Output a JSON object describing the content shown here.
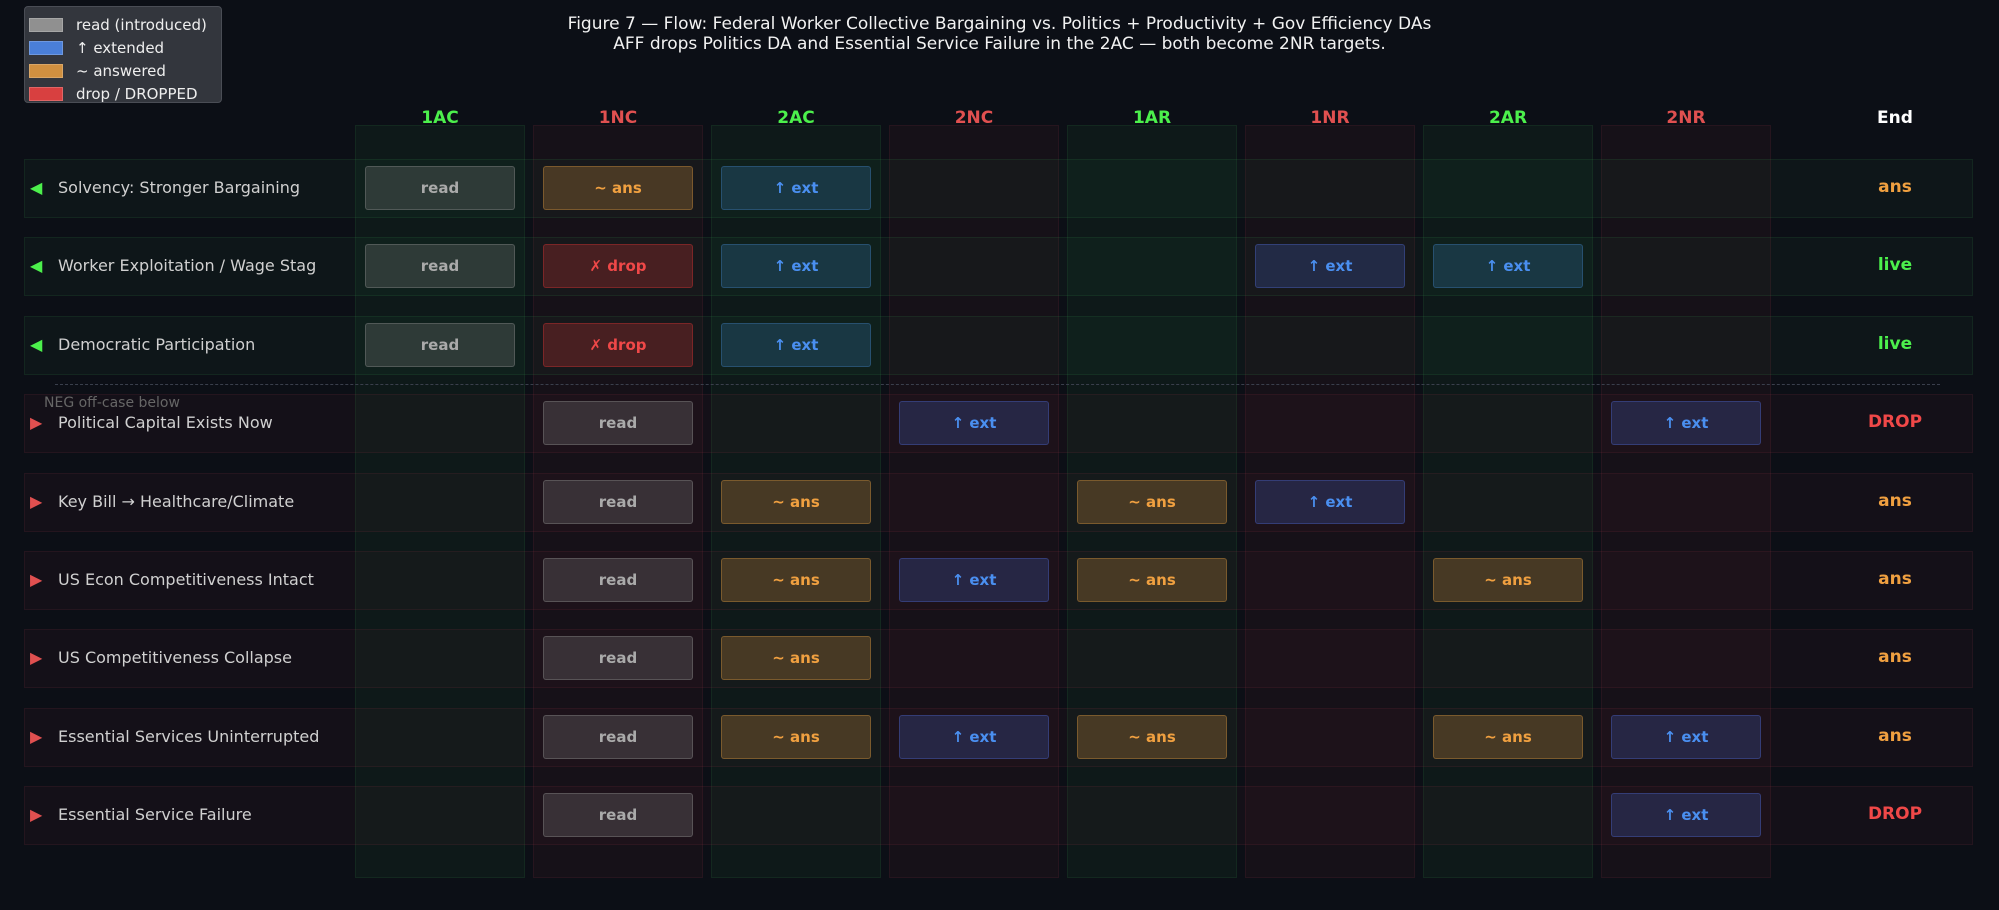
{
  "title": "Figure 7 — Flow: Federal Worker Collective Bargaining vs. Politics + Productivity + Gov Efficiency DAs",
  "subtitle": "AFF drops Politics DA and Essential Service Failure in the 2AC — both become 2NR targets.",
  "columns": [
    {
      "label": "1AC",
      "side": "aff"
    },
    {
      "label": "1NC",
      "side": "neg"
    },
    {
      "label": "2AC",
      "side": "aff"
    },
    {
      "label": "2NC",
      "side": "neg"
    },
    {
      "label": "1AR",
      "side": "aff"
    },
    {
      "label": "1NR",
      "side": "neg"
    },
    {
      "label": "2AR",
      "side": "aff"
    },
    {
      "label": "2NR",
      "side": "neg"
    }
  ],
  "end_label": "End",
  "offcase_label": "NEG off-case below",
  "arrows": {
    "aff": "◀",
    "neg": "▶"
  },
  "cell_labels": {
    "read": "read",
    "ans": "~ ans",
    "ext": "↑ ext",
    "drop": "✗ drop"
  },
  "end_colors": {
    "ans": "#f0a040",
    "live": "#4cf04c",
    "DROP": "#f04848"
  },
  "rows": [
    {
      "label": "Solvency: Stronger Bargaining",
      "side": "aff",
      "cells": [
        "read",
        "ans",
        "ext",
        "",
        "",
        "",
        "",
        ""
      ],
      "end": "ans"
    },
    {
      "label": "Worker Exploitation / Wage Stag",
      "side": "aff",
      "cells": [
        "read",
        "drop",
        "ext",
        "",
        "",
        "ext",
        "ext",
        ""
      ],
      "end": "live"
    },
    {
      "label": "Democratic Participation",
      "side": "aff",
      "cells": [
        "read",
        "drop",
        "ext",
        "",
        "",
        "",
        "",
        ""
      ],
      "end": "live"
    },
    {
      "label": "Political Capital Exists Now",
      "side": "neg",
      "cells": [
        "",
        "read",
        "",
        "ext",
        "",
        "",
        "",
        "ext"
      ],
      "end": "DROP"
    },
    {
      "label": "Key Bill → Healthcare/Climate",
      "side": "neg",
      "cells": [
        "",
        "read",
        "ans",
        "",
        "ans",
        "ext",
        "",
        ""
      ],
      "end": "ans"
    },
    {
      "label": "US Econ Competitiveness Intact",
      "side": "neg",
      "cells": [
        "",
        "read",
        "ans",
        "ext",
        "ans",
        "",
        "ans",
        ""
      ],
      "end": "ans"
    },
    {
      "label": "US Competitiveness Collapse",
      "side": "neg",
      "cells": [
        "",
        "read",
        "ans",
        "",
        "",
        "",
        "",
        ""
      ],
      "end": "ans"
    },
    {
      "label": "Essential Services Uninterrupted",
      "side": "neg",
      "cells": [
        "",
        "read",
        "ans",
        "ext",
        "ans",
        "",
        "ans",
        "ext"
      ],
      "end": "ans"
    },
    {
      "label": "Essential Service Failure",
      "side": "neg",
      "cells": [
        "",
        "read",
        "",
        "",
        "",
        "",
        "",
        "ext"
      ],
      "end": "DROP"
    }
  ],
  "legend": [
    {
      "label": "read (introduced)",
      "color": "#909090"
    },
    {
      "label": "↑ extended",
      "color": "#4a7fd8"
    },
    {
      "label": "~ answered",
      "color": "#d09040"
    },
    {
      "label": "drop / DROPPED",
      "color": "#d84040"
    }
  ],
  "colors": {
    "aff": "#4cf04c",
    "neg": "#e05050",
    "aff_arrow": "#4cf04c",
    "neg_arrow": "#e05050"
  }
}
